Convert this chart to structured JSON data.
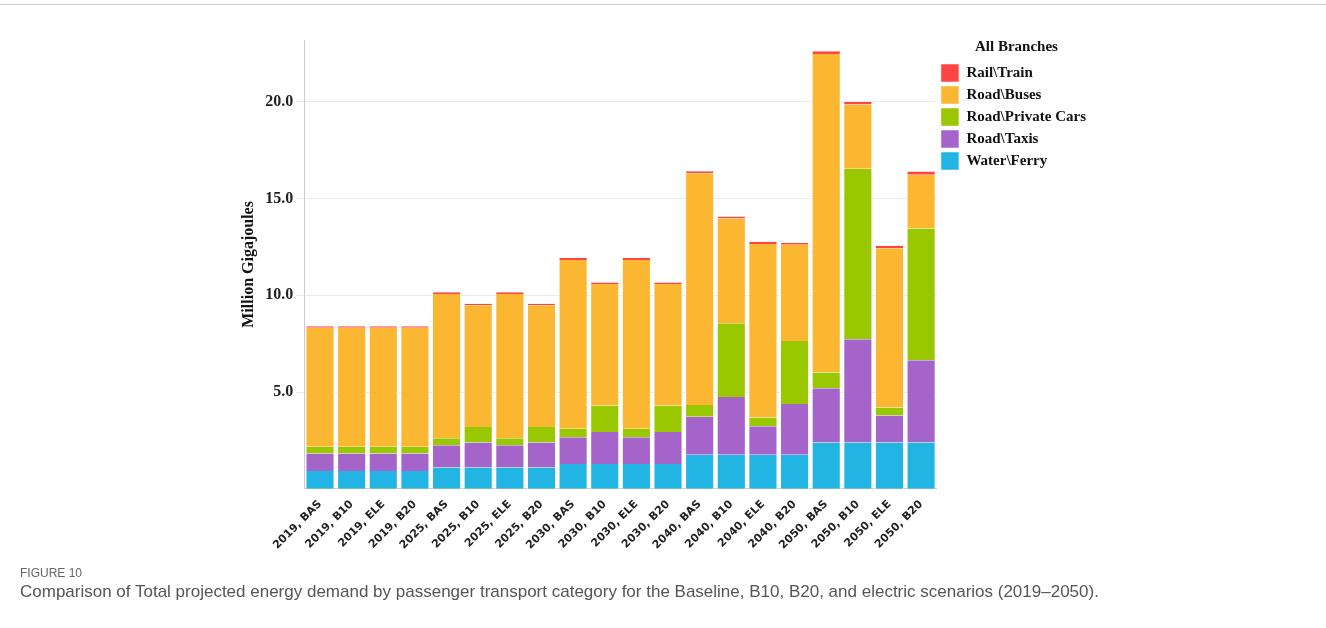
{
  "chart_data": {
    "type": "bar",
    "stacked": true,
    "ylabel": "Million Gigajoules",
    "legend_title": "All Branches",
    "legend": "top right",
    "grid": "y",
    "ylim": [
      0,
      23.2
    ],
    "yticks": [
      {
        "value": 5,
        "label": "5.0"
      },
      {
        "value": 10,
        "label": "10.0"
      },
      {
        "value": 15,
        "label": "15.0"
      },
      {
        "value": 20,
        "label": "20.0"
      }
    ],
    "categories": [
      "2019, BAS",
      "2019, B10",
      "2019, ELE",
      "2019, B20",
      "2025, BAS",
      "2025, B10",
      "2025, ELE",
      "2025, B20",
      "2030, BAS",
      "2030, B10",
      "2030, ELE",
      "2030, B20",
      "2040, BAS",
      "2040, B10",
      "2040, ELE",
      "2040, B20",
      "2050, BAS",
      "2050, B10",
      "2050, ELE",
      "2050, B20"
    ],
    "series": [
      {
        "name": "Water\\Ferry",
        "color": "#22b5e3",
        "values": [
          0.92,
          0.92,
          0.92,
          0.92,
          1.1,
          1.1,
          1.1,
          1.1,
          1.28,
          1.28,
          1.28,
          1.28,
          1.76,
          1.76,
          1.76,
          1.76,
          2.39,
          2.39,
          2.39,
          2.39
        ]
      },
      {
        "name": "Road\\Taxis",
        "color": "#a564c9",
        "values": [
          0.91,
          0.91,
          0.91,
          0.91,
          1.15,
          1.29,
          1.15,
          1.29,
          1.38,
          1.65,
          1.38,
          1.65,
          1.96,
          2.99,
          1.48,
          2.62,
          2.81,
          5.34,
          1.4,
          4.26
        ]
      },
      {
        "name": "Road\\Private Cars",
        "color": "#99c800",
        "values": [
          0.35,
          0.35,
          0.35,
          0.35,
          0.36,
          0.8,
          0.36,
          0.8,
          0.44,
          1.38,
          0.44,
          1.38,
          0.61,
          3.81,
          0.45,
          3.26,
          0.81,
          8.81,
          0.41,
          6.81
        ]
      },
      {
        "name": "Road\\Buses",
        "color": "#fbb731",
        "values": [
          6.15,
          6.15,
          6.15,
          6.15,
          7.46,
          6.3,
          7.46,
          6.3,
          8.73,
          6.28,
          8.73,
          6.28,
          11.98,
          5.41,
          8.97,
          4.97,
          16.47,
          3.32,
          8.23,
          2.78
        ]
      },
      {
        "name": "Rail\\Train",
        "color": "#ff4444",
        "values": [
          0.07,
          0.07,
          0.07,
          0.07,
          0.09,
          0.08,
          0.09,
          0.08,
          0.1,
          0.08,
          0.1,
          0.08,
          0.11,
          0.11,
          0.11,
          0.1,
          0.14,
          0.14,
          0.14,
          0.16
        ]
      }
    ],
    "annotations": [
      "FIGURE 10",
      "Comparison of Total projected energy demand by passenger transport category for the Baseline, B10, B20, and electric scenarios (2019–2050)."
    ]
  }
}
